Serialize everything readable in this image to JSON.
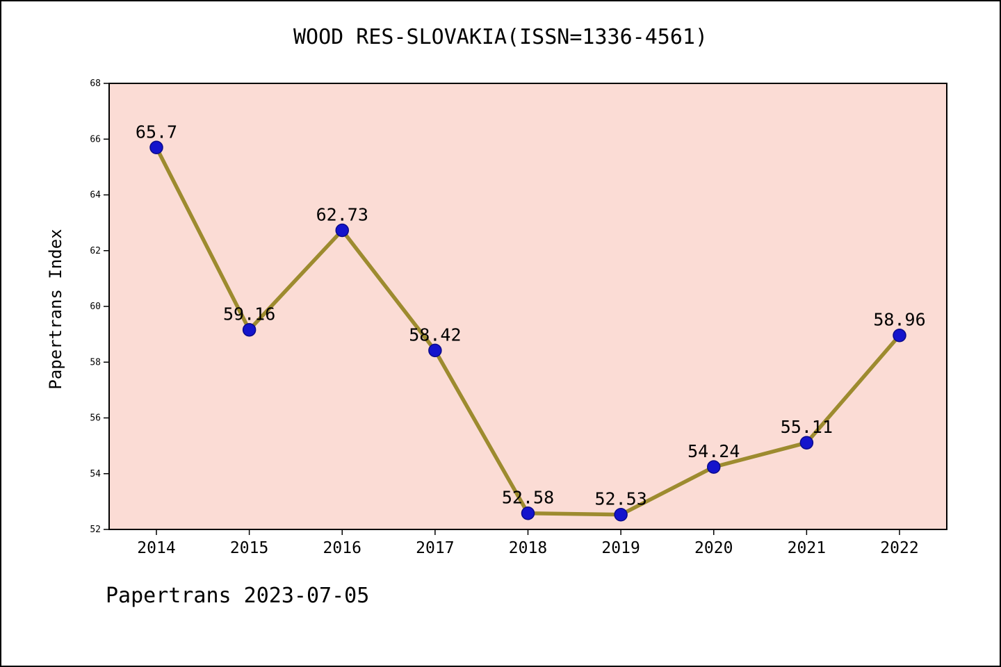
{
  "chart_data": {
    "type": "line",
    "title": "WOOD RES-SLOVAKIA(ISSN=1336-4561)",
    "ylabel": "Papertrans Index",
    "xlabel": "",
    "categories": [
      "2014",
      "2015",
      "2016",
      "2017",
      "2018",
      "2019",
      "2020",
      "2021",
      "2022"
    ],
    "values": [
      65.7,
      59.16,
      62.73,
      58.42,
      52.58,
      52.53,
      54.24,
      55.11,
      58.96
    ],
    "point_labels": [
      "65.7",
      "59.16",
      "62.73",
      "58.42",
      "52.58",
      "52.53",
      "54.24",
      "55.11",
      "58.96"
    ],
    "ylim": [
      52,
      68
    ],
    "yticks": [
      52,
      54,
      56,
      58,
      60,
      62,
      64,
      66,
      68
    ],
    "grid": false,
    "legend_position": "none",
    "colors": {
      "plot_background": "#fbdcd5",
      "page_background": "#ffffff",
      "line": "#9d8b2f",
      "marker": "#1414cc",
      "marker_edge": "#0a0a8a",
      "axis": "#000000",
      "text": "#000000"
    }
  },
  "footer": {
    "text": "Papertrans 2023-07-05"
  }
}
